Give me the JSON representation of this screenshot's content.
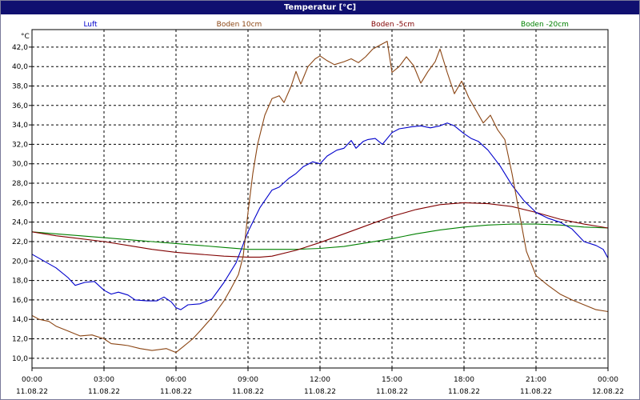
{
  "window": {
    "title": "Temperatur [°C]"
  },
  "chart_data": {
    "type": "line",
    "title": "Temperatur [°C]",
    "ylabel": "°C",
    "ylim": [
      9.0,
      43.8
    ],
    "yticks": [
      "10,0",
      "12,0",
      "14,0",
      "16,0",
      "18,0",
      "20,0",
      "22,0",
      "24,0",
      "26,0",
      "28,0",
      "30,0",
      "32,0",
      "34,0",
      "36,0",
      "38,0",
      "40,0",
      "42,0"
    ],
    "ytick_values": [
      10,
      12,
      14,
      16,
      18,
      20,
      22,
      24,
      26,
      28,
      30,
      32,
      34,
      36,
      38,
      40,
      42
    ],
    "xlim": [
      0,
      24
    ],
    "xticks": [
      {
        "h": 0,
        "time": "00:00",
        "date": "11.08.22"
      },
      {
        "h": 3,
        "time": "03:00",
        "date": "11.08.22"
      },
      {
        "h": 6,
        "time": "06:00",
        "date": "11.08.22"
      },
      {
        "h": 9,
        "time": "09:00",
        "date": "11.08.22"
      },
      {
        "h": 12,
        "time": "12:00",
        "date": "11.08.22"
      },
      {
        "h": 15,
        "time": "15:00",
        "date": "11.08.22"
      },
      {
        "h": 18,
        "time": "18:00",
        "date": "11.08.22"
      },
      {
        "h": 21,
        "time": "21:00",
        "date": "11.08.22"
      },
      {
        "h": 24,
        "time": "00:00",
        "date": "12.08.22"
      }
    ],
    "grid": true,
    "legend_position": "top",
    "series": [
      {
        "name": "Luft",
        "color": "#0000cc",
        "points": [
          [
            0,
            20.7
          ],
          [
            0.5,
            20.0
          ],
          [
            1.0,
            19.3
          ],
          [
            1.5,
            18.3
          ],
          [
            1.8,
            17.5
          ],
          [
            2.2,
            17.8
          ],
          [
            2.6,
            17.9
          ],
          [
            3.0,
            17.0
          ],
          [
            3.3,
            16.6
          ],
          [
            3.6,
            16.8
          ],
          [
            4.0,
            16.5
          ],
          [
            4.3,
            16.0
          ],
          [
            4.8,
            15.9
          ],
          [
            5.2,
            15.9
          ],
          [
            5.5,
            16.3
          ],
          [
            5.8,
            15.8
          ],
          [
            6.0,
            15.2
          ],
          [
            6.2,
            15.0
          ],
          [
            6.5,
            15.5
          ],
          [
            7.0,
            15.6
          ],
          [
            7.5,
            16.1
          ],
          [
            8.0,
            17.8
          ],
          [
            8.5,
            19.8
          ],
          [
            9.0,
            23.0
          ],
          [
            9.5,
            25.5
          ],
          [
            10.0,
            27.3
          ],
          [
            10.3,
            27.6
          ],
          [
            10.7,
            28.5
          ],
          [
            11.0,
            29.0
          ],
          [
            11.3,
            29.7
          ],
          [
            11.7,
            30.2
          ],
          [
            12.0,
            30.0
          ],
          [
            12.3,
            30.8
          ],
          [
            12.7,
            31.4
          ],
          [
            13.0,
            31.6
          ],
          [
            13.3,
            32.4
          ],
          [
            13.5,
            31.6
          ],
          [
            13.8,
            32.3
          ],
          [
            14.0,
            32.5
          ],
          [
            14.3,
            32.6
          ],
          [
            14.6,
            32.0
          ],
          [
            15.0,
            33.2
          ],
          [
            15.3,
            33.6
          ],
          [
            15.8,
            33.8
          ],
          [
            16.2,
            33.9
          ],
          [
            16.6,
            33.7
          ],
          [
            17.0,
            33.9
          ],
          [
            17.3,
            34.2
          ],
          [
            17.6,
            33.9
          ],
          [
            18.0,
            33.1
          ],
          [
            18.3,
            32.6
          ],
          [
            18.6,
            32.3
          ],
          [
            19.0,
            31.4
          ],
          [
            19.5,
            29.8
          ],
          [
            20.0,
            27.8
          ],
          [
            20.5,
            26.2
          ],
          [
            21.0,
            25.0
          ],
          [
            21.5,
            24.4
          ],
          [
            22.0,
            24.0
          ],
          [
            22.5,
            23.3
          ],
          [
            23.0,
            22.0
          ],
          [
            23.5,
            21.6
          ],
          [
            23.8,
            21.2
          ],
          [
            24.0,
            20.3
          ]
        ]
      },
      {
        "name": "Boden 10cm",
        "color": "#8b4513",
        "points": [
          [
            0,
            14.4
          ],
          [
            0.3,
            14.0
          ],
          [
            0.7,
            13.8
          ],
          [
            1.0,
            13.3
          ],
          [
            1.5,
            12.8
          ],
          [
            2.0,
            12.3
          ],
          [
            2.5,
            12.4
          ],
          [
            3.0,
            12.0
          ],
          [
            3.3,
            11.5
          ],
          [
            3.7,
            11.4
          ],
          [
            4.0,
            11.3
          ],
          [
            4.5,
            11.0
          ],
          [
            5.0,
            10.8
          ],
          [
            5.3,
            10.9
          ],
          [
            5.6,
            11.0
          ],
          [
            6.0,
            10.6
          ],
          [
            6.3,
            11.2
          ],
          [
            6.7,
            12.0
          ],
          [
            7.0,
            12.8
          ],
          [
            7.5,
            14.2
          ],
          [
            8.0,
            15.9
          ],
          [
            8.3,
            17.2
          ],
          [
            8.6,
            18.6
          ],
          [
            8.8,
            20.5
          ],
          [
            9.0,
            25.0
          ],
          [
            9.2,
            29.0
          ],
          [
            9.4,
            32.0
          ],
          [
            9.7,
            35.0
          ],
          [
            10.0,
            36.7
          ],
          [
            10.3,
            37.0
          ],
          [
            10.5,
            36.3
          ],
          [
            10.8,
            38.0
          ],
          [
            11.0,
            39.5
          ],
          [
            11.2,
            38.2
          ],
          [
            11.5,
            40.0
          ],
          [
            11.8,
            40.8
          ],
          [
            12.0,
            41.1
          ],
          [
            12.3,
            40.6
          ],
          [
            12.6,
            40.2
          ],
          [
            13.0,
            40.5
          ],
          [
            13.3,
            40.8
          ],
          [
            13.6,
            40.4
          ],
          [
            13.9,
            41.0
          ],
          [
            14.2,
            41.8
          ],
          [
            14.5,
            42.2
          ],
          [
            14.8,
            42.6
          ],
          [
            15.0,
            39.4
          ],
          [
            15.3,
            40.0
          ],
          [
            15.6,
            41.0
          ],
          [
            15.9,
            40.1
          ],
          [
            16.2,
            38.3
          ],
          [
            16.5,
            39.5
          ],
          [
            16.8,
            40.5
          ],
          [
            17.0,
            41.8
          ],
          [
            17.3,
            39.4
          ],
          [
            17.6,
            37.2
          ],
          [
            17.9,
            38.5
          ],
          [
            18.2,
            36.8
          ],
          [
            18.5,
            35.5
          ],
          [
            18.8,
            34.2
          ],
          [
            19.1,
            35.0
          ],
          [
            19.4,
            33.5
          ],
          [
            19.7,
            32.5
          ],
          [
            20.0,
            29.0
          ],
          [
            20.3,
            25.0
          ],
          [
            20.6,
            21.0
          ],
          [
            21.0,
            18.5
          ],
          [
            21.5,
            17.5
          ],
          [
            22.0,
            16.6
          ],
          [
            22.5,
            16.0
          ],
          [
            23.0,
            15.5
          ],
          [
            23.5,
            15.0
          ],
          [
            24.0,
            14.8
          ]
        ]
      },
      {
        "name": "Boden -5cm",
        "color": "#800000",
        "points": [
          [
            0,
            23.0
          ],
          [
            1,
            22.6
          ],
          [
            2,
            22.3
          ],
          [
            3,
            22.0
          ],
          [
            4,
            21.6
          ],
          [
            5,
            21.2
          ],
          [
            6,
            20.9
          ],
          [
            7,
            20.7
          ],
          [
            8,
            20.5
          ],
          [
            9,
            20.4
          ],
          [
            9.5,
            20.4
          ],
          [
            10,
            20.5
          ],
          [
            11,
            21.1
          ],
          [
            12,
            21.9
          ],
          [
            13,
            22.8
          ],
          [
            14,
            23.7
          ],
          [
            15,
            24.6
          ],
          [
            16,
            25.3
          ],
          [
            17,
            25.8
          ],
          [
            18,
            26.0
          ],
          [
            19,
            25.9
          ],
          [
            20,
            25.6
          ],
          [
            21,
            25.0
          ],
          [
            22,
            24.3
          ],
          [
            23,
            23.8
          ],
          [
            24,
            23.4
          ]
        ]
      },
      {
        "name": "Boden -20cm",
        "color": "#008000",
        "points": [
          [
            0,
            23.0
          ],
          [
            1,
            22.8
          ],
          [
            2,
            22.6
          ],
          [
            3,
            22.4
          ],
          [
            4,
            22.2
          ],
          [
            5,
            22.0
          ],
          [
            6,
            21.8
          ],
          [
            7,
            21.6
          ],
          [
            8,
            21.4
          ],
          [
            9,
            21.2
          ],
          [
            10,
            21.2
          ],
          [
            11,
            21.2
          ],
          [
            12,
            21.3
          ],
          [
            13,
            21.5
          ],
          [
            14,
            21.9
          ],
          [
            15,
            22.3
          ],
          [
            16,
            22.8
          ],
          [
            17,
            23.2
          ],
          [
            18,
            23.5
          ],
          [
            19,
            23.7
          ],
          [
            20,
            23.8
          ],
          [
            21,
            23.8
          ],
          [
            22,
            23.7
          ],
          [
            23,
            23.5
          ],
          [
            24,
            23.4
          ]
        ]
      }
    ]
  }
}
